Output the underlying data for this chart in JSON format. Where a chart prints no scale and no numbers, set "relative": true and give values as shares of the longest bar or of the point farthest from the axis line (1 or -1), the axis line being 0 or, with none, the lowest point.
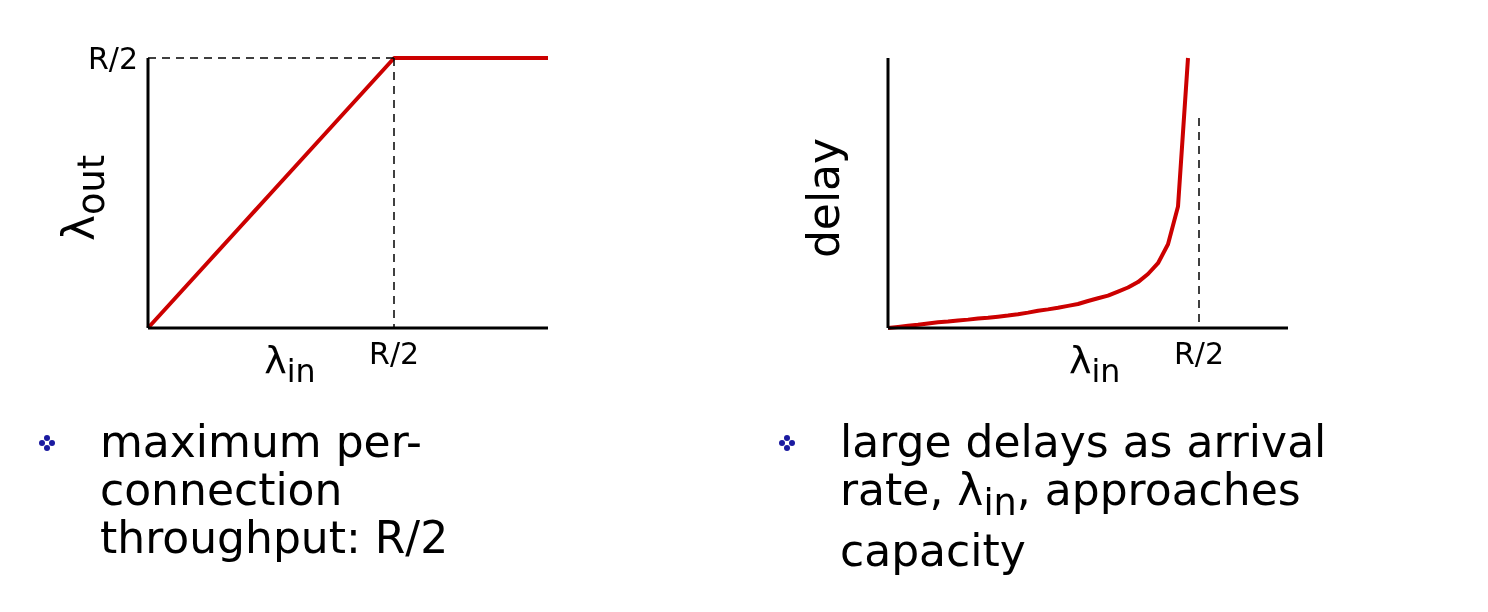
{
  "chart_data": [
    {
      "type": "line",
      "relative": true,
      "xlabel": "λ$_{in}$",
      "ylabel": "λ$_{out}$",
      "categories": [
        null,
        null,
        null,
        null,
        null,
        null,
        null,
        null,
        null,
        null,
        null,
        null,
        null,
        null
      ],
      "values": [
        0,
        0.125,
        0.25,
        0.375,
        0.5,
        0.625,
        0.75,
        0.875,
        1,
        1,
        1,
        1,
        1,
        1
      ],
      "color": "#cc0000",
      "annotations": [
        "R/2",
        "R/2",
        "maximum per-connection throughput: R/2"
      ]
    },
    {
      "type": "line",
      "relative": true,
      "xlabel": "λ$_{in}$",
      "ylabel": "delay",
      "categories": [
        null,
        null,
        null,
        null,
        null,
        null,
        null,
        null,
        null,
        null,
        null,
        null,
        null,
        null,
        null,
        null,
        null,
        null,
        null,
        null,
        null,
        null,
        null,
        null,
        null,
        null,
        null,
        null,
        null,
        null,
        null,
        null,
        null,
        null,
        null,
        null,
        null,
        null,
        null,
        null,
        null
      ],
      "values": [
        0,
        0.004,
        0.008,
        0.012,
        0.017,
        0.021,
        0.024,
        0.028,
        0.031,
        0.035,
        0.038,
        0.042,
        0.046,
        0.051,
        0.057,
        0.064,
        0.069,
        0.075,
        0.082,
        0.089,
        0.1,
        0.11,
        0.12,
        0.135,
        0.15,
        0.17,
        0.2,
        0.24,
        0.31,
        0.45,
        1,
        null,
        null,
        null,
        null,
        null,
        null,
        null,
        null,
        null,
        null
      ],
      "color": "#cc0000",
      "annotations": [
        "R/2",
        "large delays as arrival rate, λ$_{in}$, approaches capacity"
      ]
    }
  ]
}
